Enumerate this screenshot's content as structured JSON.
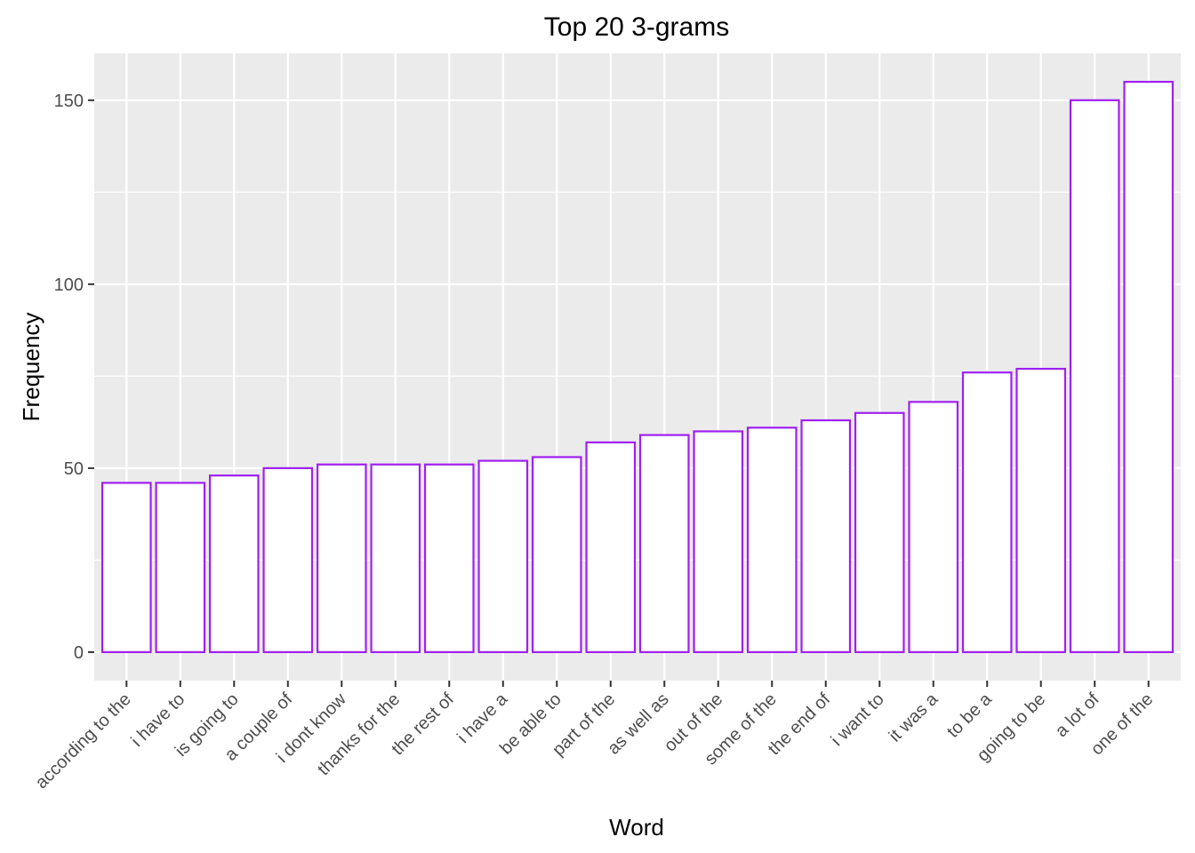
{
  "chart_data": {
    "type": "bar",
    "title": "Top 20 3-grams",
    "xlabel": "Word",
    "ylabel": "Frequency",
    "categories": [
      "according to the",
      "i have to",
      "is going to",
      "a couple of",
      "i dont know",
      "thanks for the",
      "the rest of",
      "i have a",
      "be able to",
      "part of the",
      "as well as",
      "out of the",
      "some of the",
      "the end of",
      "i want to",
      "it was a",
      "to be a",
      "going to be",
      "a lot of",
      "one of the"
    ],
    "values": [
      46,
      46,
      48,
      50,
      51,
      51,
      51,
      52,
      53,
      57,
      59,
      60,
      61,
      63,
      65,
      68,
      76,
      77,
      150,
      155
    ],
    "y_ticks": [
      0,
      50,
      100,
      150
    ],
    "ylim": [
      -7.75,
      162.75
    ],
    "grid": true,
    "bar_fill": "#ffffff",
    "bar_outline": "#a020f0",
    "panel_background": "#ebebeb"
  }
}
